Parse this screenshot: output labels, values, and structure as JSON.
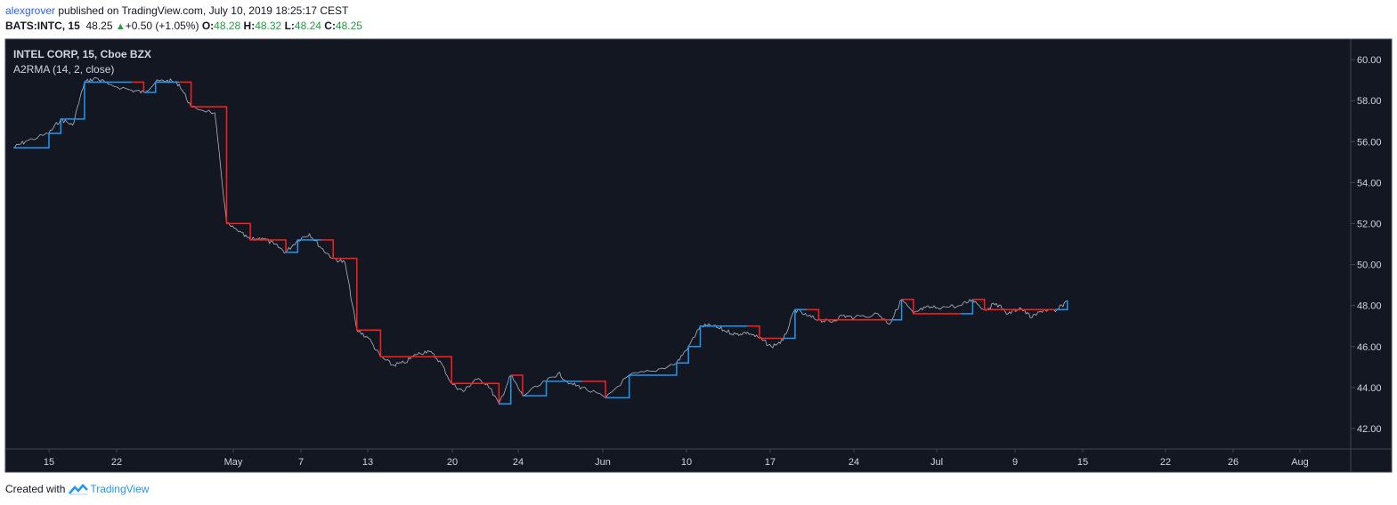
{
  "header": {
    "author": "alexgrover",
    "published_text": "published on TradingView.com, July 10, 2019 18:25:17 CEST",
    "symbol": "BATS:INTC, 15",
    "last": "48.25",
    "change": "+0.50 (+1.05%)",
    "open_label": "O:",
    "open": "48.28",
    "high_label": "H:",
    "high": "48.32",
    "low_label": "L:",
    "low": "48.24",
    "close_label": "C:",
    "close": "48.25"
  },
  "legend": {
    "series": "INTEL CORP, 15, Cboe BZX",
    "indicator": "A2RMA (14, 2, close)"
  },
  "footer": {
    "created_with": "Created with",
    "brand": "TradingView"
  },
  "colors": {
    "background": "#131722",
    "price": "#b2b5be",
    "rising": "#2196f3",
    "falling": "#ff1e1e",
    "axis_text": "#d1d4dc",
    "up_green": "#1e9e3e"
  },
  "chart_data": {
    "type": "line",
    "y_axis": {
      "min": 41.0,
      "max": 61.0,
      "ticks": [
        "42.00",
        "44.00",
        "46.00",
        "48.00",
        "50.00",
        "52.00",
        "54.00",
        "56.00",
        "58.00",
        "60.00"
      ],
      "position": "right"
    },
    "x_ticks": [
      "15",
      "22",
      "May",
      "7",
      "13",
      "20",
      "24",
      "Jun",
      "10",
      "17",
      "24",
      "Jul",
      "9",
      "15",
      "22",
      "26",
      "Aug"
    ],
    "grid": false,
    "series": [
      {
        "role": "price",
        "points": [
          [
            "Apr 12",
            55.7
          ],
          [
            "Apr 13",
            56.0
          ],
          [
            "Apr 15",
            56.4
          ],
          [
            "Apr 16",
            57.1
          ],
          [
            "Apr 17",
            56.8
          ],
          [
            "Apr 18",
            58.9
          ],
          [
            "Apr 19",
            59.1
          ],
          [
            "Apr 20",
            58.8
          ],
          [
            "Apr 22",
            58.5
          ],
          [
            "Apr 23",
            58.4
          ],
          [
            "Apr 24",
            58.9
          ],
          [
            "Apr 25",
            59.0
          ],
          [
            "Apr 26",
            58.8
          ],
          [
            "Apr 27",
            57.7
          ],
          [
            "Apr 29",
            57.4
          ],
          [
            "Apr 30",
            52.0
          ],
          [
            "May 1",
            51.6
          ],
          [
            "May 2",
            51.2
          ],
          [
            "May 3",
            51.3
          ],
          [
            "May 4",
            51.0
          ],
          [
            "May 5",
            50.6
          ],
          [
            "May 6",
            51.2
          ],
          [
            "May 7",
            51.5
          ],
          [
            "May 8",
            50.8
          ],
          [
            "May 9",
            50.3
          ],
          [
            "May 10",
            50.1
          ],
          [
            "May 11",
            46.8
          ],
          [
            "May 12",
            46.4
          ],
          [
            "May 13",
            45.5
          ],
          [
            "May 14",
            45.1
          ],
          [
            "May 15",
            45.2
          ],
          [
            "May 16",
            45.6
          ],
          [
            "May 17",
            45.8
          ],
          [
            "May 18",
            45.3
          ],
          [
            "May 19",
            44.2
          ],
          [
            "May 20",
            43.8
          ],
          [
            "May 21",
            44.4
          ],
          [
            "May 22",
            44.2
          ],
          [
            "May 23",
            43.2
          ],
          [
            "May 24",
            44.6
          ],
          [
            "May 25",
            43.6
          ],
          [
            "May 27",
            44.3
          ],
          [
            "May 28",
            44.7
          ],
          [
            "May 29",
            44.2
          ],
          [
            "May 30",
            44.0
          ],
          [
            "Jun 1",
            43.5
          ],
          [
            "Jun 3",
            44.6
          ],
          [
            "Jun 5",
            44.8
          ],
          [
            "Jun 7",
            45.2
          ],
          [
            "Jun 8",
            46.0
          ],
          [
            "Jun 9",
            47.0
          ],
          [
            "Jun 10",
            47.0
          ],
          [
            "Jun 11",
            46.8
          ],
          [
            "Jun 12",
            46.6
          ],
          [
            "Jun 13",
            46.7
          ],
          [
            "Jun 14",
            46.4
          ],
          [
            "Jun 15",
            46.0
          ],
          [
            "Jun 16",
            46.3
          ],
          [
            "Jun 17",
            47.8
          ],
          [
            "Jun 18",
            47.5
          ],
          [
            "Jun 19",
            47.3
          ],
          [
            "Jun 20",
            47.2
          ],
          [
            "Jun 21",
            47.5
          ],
          [
            "Jun 22",
            47.4
          ],
          [
            "Jun 24",
            47.6
          ],
          [
            "Jun 25",
            47.1
          ],
          [
            "Jun 26",
            48.3
          ],
          [
            "Jun 27",
            47.6
          ],
          [
            "Jun 28",
            47.9
          ],
          [
            "Jun 29",
            47.9
          ],
          [
            "Jul 1",
            48.0
          ],
          [
            "Jul 2",
            48.3
          ],
          [
            "Jul 3",
            47.8
          ],
          [
            "Jul 4",
            48.1
          ],
          [
            "Jul 5",
            47.6
          ],
          [
            "Jul 6",
            47.9
          ],
          [
            "Jul 7",
            47.4
          ],
          [
            "Jul 8",
            47.8
          ],
          [
            "Jul 9",
            47.7
          ],
          [
            "Jul 10",
            48.25
          ]
        ]
      }
    ]
  }
}
